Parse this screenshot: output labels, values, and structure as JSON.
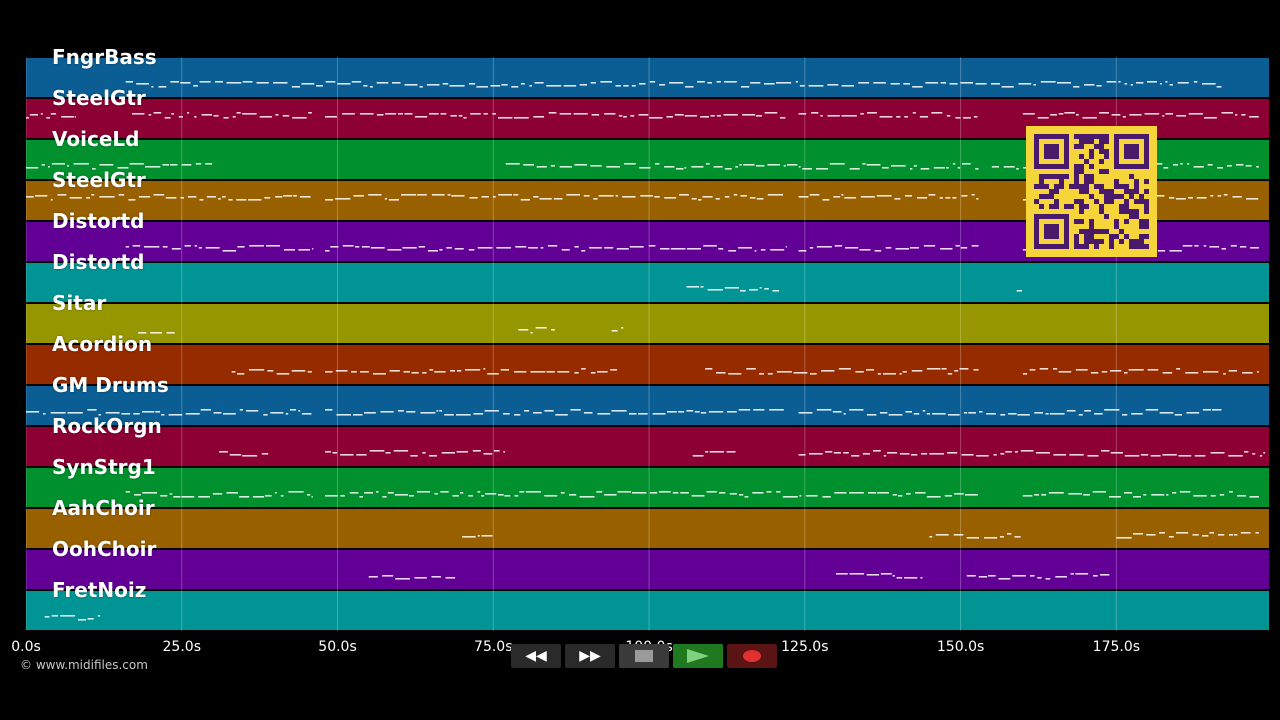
{
  "tracks": [
    {
      "name": "FngrBass",
      "color": "#0a5e94"
    },
    {
      "name": "SteelGtr",
      "color": "#8c0033"
    },
    {
      "name": "VoiceLd",
      "color": "#00902d"
    },
    {
      "name": "SteelGtr",
      "color": "#996000"
    },
    {
      "name": "Distortd",
      "color": "#620096"
    },
    {
      "name": "Distortd",
      "color": "#009494"
    },
    {
      "name": "Sitar",
      "color": "#969600"
    },
    {
      "name": "Acordion",
      "color": "#962b00"
    },
    {
      "name": "GM Drums",
      "color": "#0a5e94"
    },
    {
      "name": "RockOrgn",
      "color": "#8c0033"
    },
    {
      "name": "SynStrg1",
      "color": "#00902d"
    },
    {
      "name": "AahChoir",
      "color": "#996000"
    },
    {
      "name": "OohChoir",
      "color": "#620096"
    },
    {
      "name": "FretNoiz",
      "color": "#009494"
    }
  ],
  "timeline": {
    "ticks": [
      "0.0s",
      "25.0s",
      "50.0s",
      "75.0s",
      "100.0s",
      "125.0s",
      "150.0s",
      "175.0s"
    ],
    "tick_values": [
      0,
      25,
      50,
      75,
      100,
      125,
      150,
      175
    ],
    "max_seconds": 199.5
  },
  "copyright": "© www.midifiles.com",
  "transport": {
    "rewind_icon": "rewind-icon",
    "fast_forward_icon": "fast-forward-icon",
    "stop_icon": "stop-icon",
    "play_icon": "play-icon",
    "record_icon": "record-icon",
    "colors": {
      "button_bg": "#2a2a2a",
      "play_bg": "#1f7a1f",
      "record_bg": "#7a1f1f"
    }
  },
  "qr_code": {
    "icon": "qr-code-icon",
    "color": "#f5d53a",
    "ink": "#4a1a6a"
  }
}
